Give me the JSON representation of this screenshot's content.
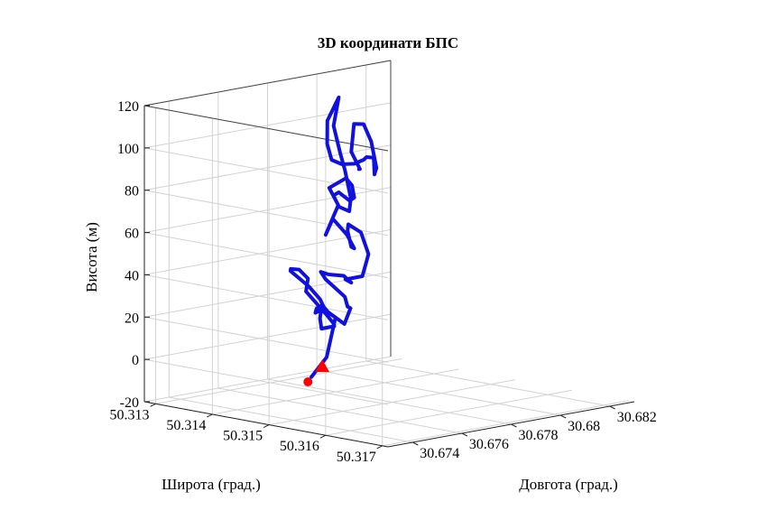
{
  "chart_data": {
    "type": "line",
    "title": "3D координати БПС",
    "xlabel": "Довгота (град.)",
    "ylabel": "Широта (град.)",
    "zlabel": "Висота (м)",
    "x_ticks": [
      "30.674",
      "30.676",
      "30.678",
      "30.68",
      "30.682"
    ],
    "y_ticks": [
      "50.317",
      "50.316",
      "50.315",
      "50.314",
      "50.313"
    ],
    "z_ticks": [
      "-20",
      "0",
      "20",
      "40",
      "60",
      "80",
      "100",
      "120"
    ],
    "xlim": [
      30.673,
      30.683
    ],
    "ylim": [
      50.3128,
      50.3171
    ],
    "zlim": [
      -20,
      120
    ],
    "grid": true,
    "series": [
      {
        "color": "#1010e0",
        "points": [
          [
            30.6761,
            50.3144,
            -7
          ],
          [
            30.6758,
            50.3148,
            5
          ],
          [
            30.6757,
            50.315,
            25
          ],
          [
            30.6752,
            50.315,
            30
          ],
          [
            30.6758,
            50.3146,
            25
          ],
          [
            30.677,
            50.3141,
            22
          ],
          [
            30.6779,
            50.3138,
            20
          ],
          [
            30.6776,
            50.3139,
            15
          ],
          [
            30.6772,
            50.3141,
            12
          ],
          [
            30.6768,
            50.3145,
            16
          ],
          [
            30.6761,
            50.3148,
            20
          ],
          [
            30.6758,
            50.3148,
            25
          ],
          [
            30.6768,
            50.314,
            30
          ],
          [
            30.6778,
            50.3136,
            32
          ],
          [
            30.6779,
            50.3134,
            35
          ],
          [
            30.6771,
            50.3136,
            38
          ],
          [
            30.6764,
            50.3139,
            40
          ],
          [
            30.676,
            50.3144,
            36
          ],
          [
            30.6753,
            50.3149,
            34
          ],
          [
            30.6743,
            50.3154,
            35
          ],
          [
            30.6731,
            50.316,
            38
          ],
          [
            30.6733,
            50.3162,
            33
          ],
          [
            30.6747,
            50.3157,
            35
          ],
          [
            30.6755,
            50.3153,
            32
          ],
          [
            30.677,
            50.3146,
            30
          ],
          [
            30.6776,
            50.314,
            34
          ],
          [
            30.6774,
            50.314,
            38
          ],
          [
            30.6768,
            50.3144,
            40
          ],
          [
            30.6758,
            50.3151,
            45
          ],
          [
            30.6745,
            50.3158,
            48
          ],
          [
            30.6738,
            50.316,
            52
          ],
          [
            30.6738,
            50.3163,
            55
          ],
          [
            30.6752,
            50.3158,
            60
          ],
          [
            30.6765,
            50.3151,
            64
          ],
          [
            30.6776,
            50.3144,
            62
          ],
          [
            30.6778,
            50.3143,
            58
          ],
          [
            30.6768,
            50.3148,
            55
          ],
          [
            30.676,
            50.3152,
            58
          ],
          [
            30.6764,
            50.3149,
            62
          ],
          [
            30.6772,
            50.3143,
            65
          ],
          [
            30.6776,
            50.314,
            55
          ],
          [
            30.6786,
            50.3137,
            60
          ],
          [
            30.6788,
            50.3137,
            65
          ],
          [
            30.6786,
            50.3137,
            70
          ],
          [
            30.6779,
            50.3141,
            75
          ],
          [
            30.6765,
            50.3149,
            78
          ],
          [
            30.676,
            50.3152,
            82
          ],
          [
            30.6766,
            50.3149,
            85
          ],
          [
            30.6778,
            50.3143,
            82
          ],
          [
            30.6784,
            50.314,
            80
          ],
          [
            30.6782,
            50.3138,
            75
          ],
          [
            30.677,
            50.3145,
            72
          ],
          [
            30.6758,
            50.3152,
            76
          ],
          [
            30.6754,
            50.3154,
            84
          ],
          [
            30.677,
            50.3146,
            90
          ],
          [
            30.6782,
            50.314,
            92
          ],
          [
            30.6793,
            50.3134,
            100
          ],
          [
            30.6802,
            50.3131,
            110
          ],
          [
            30.6802,
            50.3129,
            98
          ],
          [
            30.6795,
            50.3132,
            90
          ],
          [
            30.6783,
            50.3138,
            88
          ],
          [
            30.6771,
            50.3145,
            92
          ],
          [
            30.676,
            50.3152,
            98
          ],
          [
            30.675,
            50.3158,
            105
          ],
          [
            30.6742,
            50.3162,
            110
          ],
          [
            30.6738,
            50.3165,
            112
          ],
          [
            30.6736,
            50.3166,
            105
          ],
          [
            30.6746,
            50.3162,
            104
          ],
          [
            30.676,
            50.3155,
            110
          ],
          [
            30.6773,
            50.3148,
            112
          ],
          [
            30.6776,
            50.3145,
            110
          ],
          [
            30.6768,
            50.3148,
            100
          ],
          [
            30.676,
            50.3153,
            96
          ],
          [
            30.6755,
            50.3155,
            98
          ]
        ]
      }
    ],
    "markers": [
      {
        "shape": "circle",
        "color": "#ff0000",
        "point": [
          30.6755,
          50.3146,
          -7
        ]
      },
      {
        "shape": "triangle",
        "color": "#ff0000",
        "point": [
          30.677,
          50.3142,
          -5
        ]
      }
    ]
  }
}
